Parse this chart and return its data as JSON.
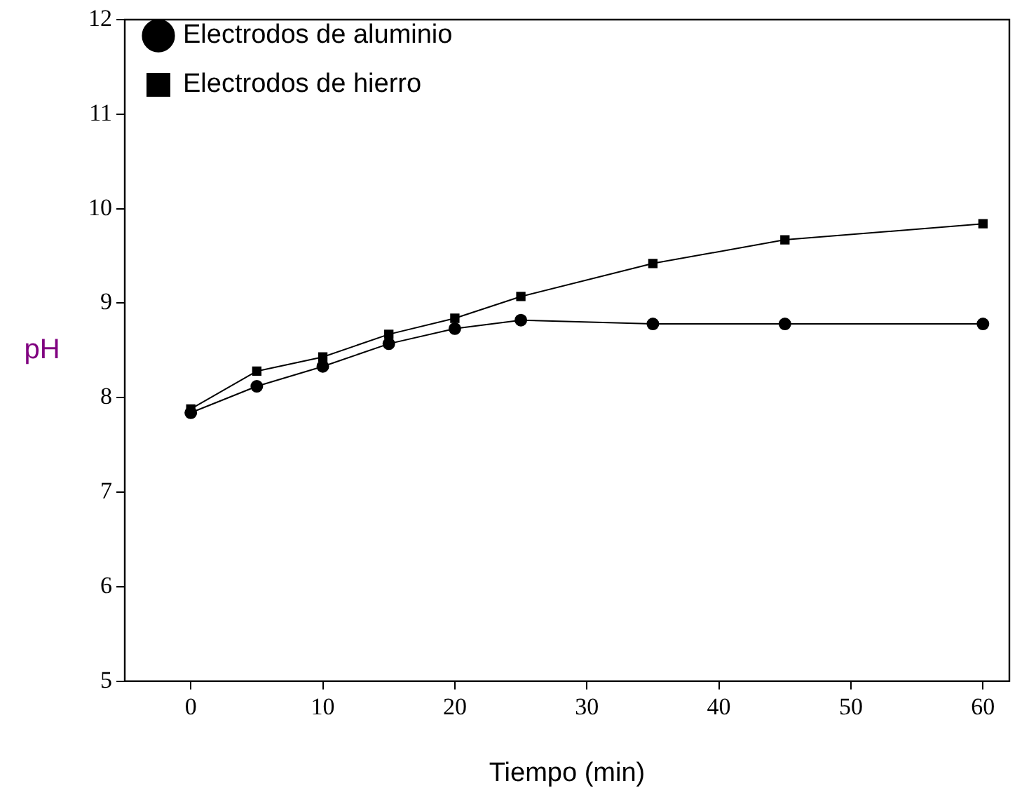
{
  "chart_data": {
    "type": "line",
    "xlabel": "Tiempo (min)",
    "ylabel": "pH",
    "x": [
      0,
      5,
      10,
      15,
      20,
      25,
      35,
      45,
      60
    ],
    "series": [
      {
        "name": "Electrodos de aluminio",
        "color": "#000000",
        "marker": "circle",
        "values": [
          7.84,
          8.12,
          8.33,
          8.57,
          8.73,
          8.82,
          8.78,
          8.78,
          8.78
        ]
      },
      {
        "name": "Electrodos de hierro",
        "color": "#000000",
        "marker": "square",
        "values": [
          7.88,
          8.28,
          8.43,
          8.67,
          8.84,
          9.07,
          9.42,
          9.67,
          9.84
        ]
      }
    ],
    "xlim": [
      -5,
      62
    ],
    "xticks": [
      0,
      10,
      20,
      30,
      40,
      50,
      60
    ],
    "ylim": [
      5,
      12
    ],
    "yticks": [
      5,
      6,
      7,
      8,
      9,
      10,
      11,
      12
    ],
    "grid": false,
    "legend": "top left",
    "line_style": "solid"
  }
}
